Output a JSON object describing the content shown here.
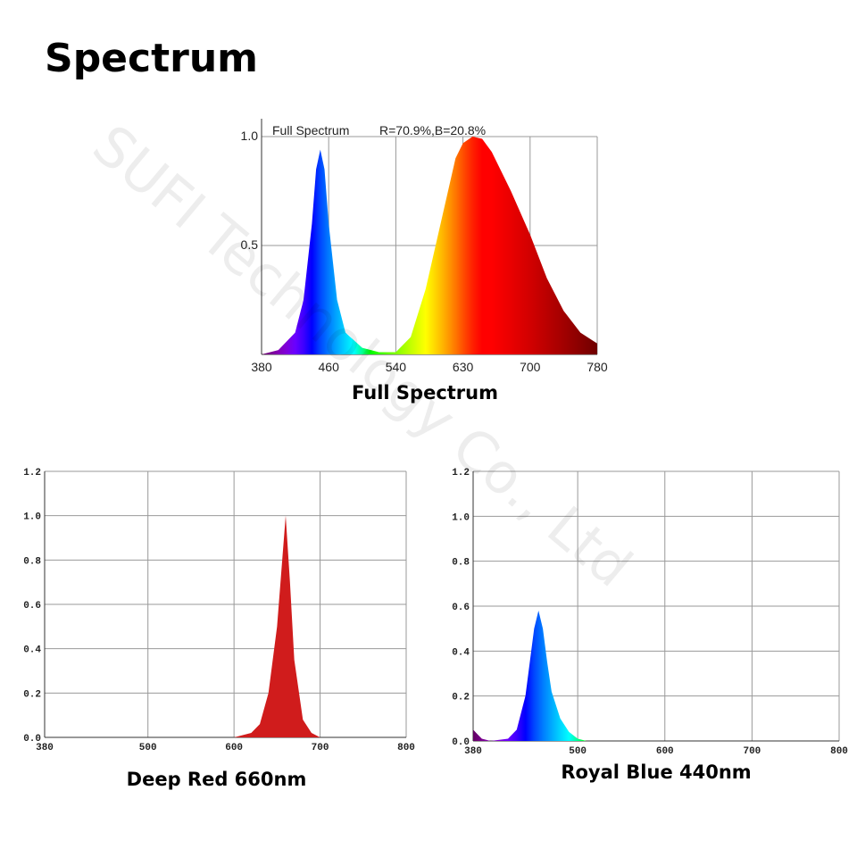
{
  "title": "Spectrum",
  "watermark": "SUFI Technology Co., Ltd",
  "chart_data": [
    {
      "type": "area",
      "title": "Full Spectrum",
      "annotation": "R=70.9%,B=20.8%",
      "caption": "Full Spectrum",
      "x": [
        380,
        400,
        420,
        430,
        440,
        445,
        450,
        455,
        460,
        470,
        480,
        500,
        520,
        540,
        560,
        580,
        600,
        620,
        630,
        640,
        650,
        660,
        680,
        700,
        720,
        740,
        760,
        780
      ],
      "values": [
        0,
        0.02,
        0.1,
        0.25,
        0.6,
        0.85,
        0.94,
        0.85,
        0.6,
        0.25,
        0.1,
        0.03,
        0.01,
        0.01,
        0.08,
        0.3,
        0.6,
        0.9,
        0.97,
        1.0,
        0.99,
        0.93,
        0.75,
        0.55,
        0.35,
        0.2,
        0.1,
        0.05
      ],
      "color": "spectrum",
      "xtick_spacing": "equal",
      "xlim": [
        380,
        780
      ],
      "xticks": [
        380,
        460,
        540,
        630,
        700,
        780
      ],
      "ylim": [
        0,
        1
      ],
      "yticks": [
        0.5,
        {
          "value": 1,
          "label": "1.0"
        }
      ],
      "grid": true
    },
    {
      "type": "area",
      "caption": "Deep Red 660nm",
      "x": [
        380,
        600,
        620,
        630,
        640,
        650,
        655,
        660,
        665,
        670,
        680,
        690,
        700,
        800
      ],
      "values": [
        0,
        0,
        0.02,
        0.06,
        0.2,
        0.5,
        0.75,
        1.0,
        0.7,
        0.35,
        0.08,
        0.02,
        0,
        0
      ],
      "color": "#d01c1c",
      "xlim": [
        380,
        800
      ],
      "xticks": [
        380,
        500,
        600,
        700,
        800
      ],
      "ylim": [
        0,
        1.2
      ],
      "yticks": [
        {
          "value": 0,
          "label": "0.0"
        },
        0.2,
        0.4,
        0.6,
        0.8,
        {
          "value": 1,
          "label": "1.0"
        },
        1.2
      ],
      "grid": true
    },
    {
      "type": "area",
      "caption": "Royal Blue 440nm",
      "x": [
        380,
        385,
        390,
        400,
        420,
        430,
        440,
        445,
        450,
        455,
        460,
        465,
        470,
        480,
        490,
        500,
        510,
        800
      ],
      "values": [
        0.05,
        0.03,
        0.01,
        0,
        0.01,
        0.05,
        0.2,
        0.35,
        0.5,
        0.58,
        0.5,
        0.35,
        0.22,
        0.1,
        0.04,
        0.01,
        0,
        0
      ],
      "color": "spectrum",
      "xlim": [
        380,
        800
      ],
      "xticks": [
        380,
        500,
        600,
        700,
        800
      ],
      "ylim": [
        0,
        1.2
      ],
      "yticks": [
        {
          "value": 0,
          "label": "0.0"
        },
        0.2,
        0.4,
        0.6,
        0.8,
        {
          "value": 1,
          "label": "1.0"
        },
        1.2
      ],
      "grid": true
    }
  ]
}
